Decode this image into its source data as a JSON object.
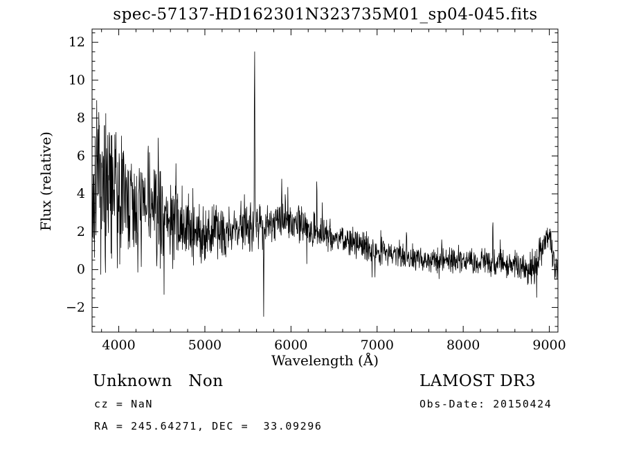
{
  "title": "spec-57137-HD162301N323735M01_sp04-045.fits",
  "chart_data": {
    "type": "line",
    "title": "spec-57137-HD162301N323735M01_sp04-045.fits",
    "xlabel": "Wavelength (Å)",
    "ylabel": "Flux (relative)",
    "xlim": [
      3690,
      9100
    ],
    "ylim": [
      -3.3,
      12.7
    ],
    "xticks": [
      4000,
      5000,
      6000,
      7000,
      8000,
      9000
    ],
    "yticks": [
      -2,
      0,
      2,
      4,
      6,
      8,
      10,
      12
    ],
    "x_minor_step": 200,
    "y_minor_step": 0.5,
    "grid": false,
    "legend": "none",
    "line_color": "#000000",
    "background_color": "#ffffff",
    "series": [
      {
        "name": "spectrum-flux",
        "seed": 7,
        "n_points": 1600,
        "continuum": [
          [
            3690,
            3.2
          ],
          [
            3750,
            4.2
          ],
          [
            3800,
            4.0
          ],
          [
            3900,
            3.8
          ],
          [
            4000,
            3.6
          ],
          [
            4200,
            3.3
          ],
          [
            4400,
            3.0
          ],
          [
            4600,
            2.6
          ],
          [
            4800,
            2.1
          ],
          [
            5000,
            1.9
          ],
          [
            5200,
            2.0
          ],
          [
            5400,
            2.2
          ],
          [
            5600,
            2.4
          ],
          [
            5800,
            2.6
          ],
          [
            6000,
            2.5
          ],
          [
            6200,
            2.2
          ],
          [
            6400,
            1.9
          ],
          [
            6600,
            1.6
          ],
          [
            6800,
            1.3
          ],
          [
            7000,
            1.0
          ],
          [
            7200,
            0.85
          ],
          [
            7400,
            0.7
          ],
          [
            7600,
            0.45
          ],
          [
            7800,
            0.55
          ],
          [
            8000,
            0.5
          ],
          [
            8200,
            0.45
          ],
          [
            8400,
            0.35
          ],
          [
            8600,
            0.3
          ],
          [
            8750,
            0.1
          ],
          [
            8850,
            0.3
          ],
          [
            8950,
            1.5
          ],
          [
            9000,
            1.9
          ],
          [
            9040,
            0.9
          ],
          [
            9080,
            0.1
          ]
        ],
        "noise_envelope": [
          [
            3690,
            2.5
          ],
          [
            3800,
            2.4
          ],
          [
            3900,
            2.2
          ],
          [
            4000,
            1.9
          ],
          [
            4200,
            1.6
          ],
          [
            4400,
            1.4
          ],
          [
            4700,
            1.1
          ],
          [
            5000,
            0.85
          ],
          [
            5300,
            0.8
          ],
          [
            5600,
            0.7
          ],
          [
            6000,
            0.55
          ],
          [
            6500,
            0.45
          ],
          [
            7000,
            0.4
          ],
          [
            7500,
            0.38
          ],
          [
            8000,
            0.35
          ],
          [
            8500,
            0.42
          ],
          [
            8800,
            0.5
          ],
          [
            9080,
            0.45
          ]
        ],
        "spikes": [
          {
            "x": 3745,
            "y": 9.4,
            "w": 6
          },
          {
            "x": 3768,
            "y": 8.3,
            "w": 5
          },
          {
            "x": 3835,
            "y": 8.0,
            "w": 5
          },
          {
            "x": 3890,
            "y": 7.6,
            "w": 5
          },
          {
            "x": 3968,
            "y": 7.8,
            "w": 5
          },
          {
            "x": 4047,
            "y": 7.1,
            "w": 5
          },
          {
            "x": 4078,
            "y": 6.6,
            "w": 4
          },
          {
            "x": 4340,
            "y": 6.5,
            "w": 5
          },
          {
            "x": 4358,
            "y": 6.9,
            "w": 4
          },
          {
            "x": 4420,
            "y": 5.9,
            "w": 4
          },
          {
            "x": 4665,
            "y": 6.2,
            "w": 4
          },
          {
            "x": 4861,
            "y": 4.6,
            "w": 4
          },
          {
            "x": 5460,
            "y": 4.4,
            "w": 4
          },
          {
            "x": 5577,
            "y": 12.7,
            "w": 7
          },
          {
            "x": 5683,
            "y": -2.65,
            "w": 6
          },
          {
            "x": 5893,
            "y": 4.9,
            "w": 5
          },
          {
            "x": 5935,
            "y": 4.4,
            "w": 4
          },
          {
            "x": 6090,
            "y": 4.2,
            "w": 4
          },
          {
            "x": 6300,
            "y": 5.65,
            "w": 5
          },
          {
            "x": 6363,
            "y": 3.6,
            "w": 4
          },
          {
            "x": 7340,
            "y": 2.1,
            "w": 4
          },
          {
            "x": 7750,
            "y": 1.6,
            "w": 4
          },
          {
            "x": 8344,
            "y": 3.25,
            "w": 5
          },
          {
            "x": 8430,
            "y": 1.6,
            "w": 4
          },
          {
            "x": 8827,
            "y": -0.9,
            "w": 5
          }
        ]
      }
    ]
  },
  "annotations": {
    "class_label": "Unknown   Non",
    "survey": "LAMOST DR3",
    "cz": "cz = NaN",
    "obs_date": "Obs-Date: 20150424",
    "coords": "RA = 245.64271, DEC =  33.09296"
  }
}
